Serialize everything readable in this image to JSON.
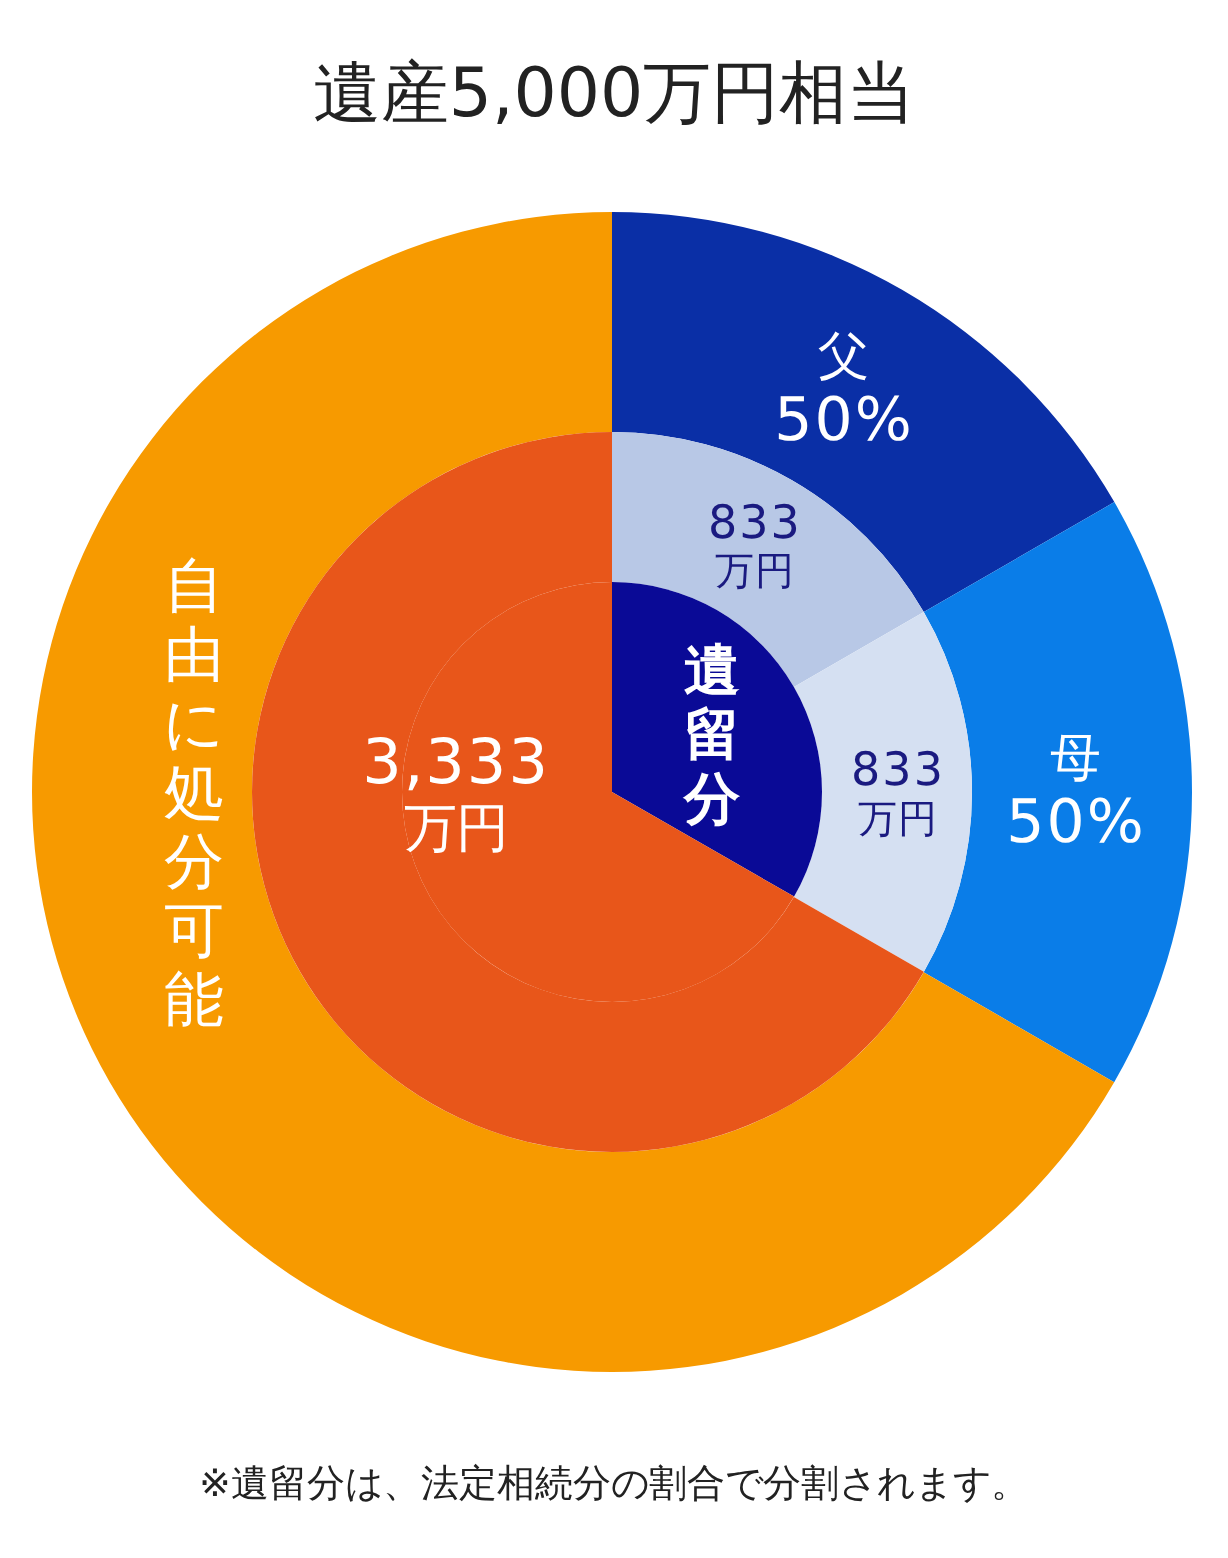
{
  "chart_data": [
    {
      "type": "donut",
      "title": "遺産5,000万円相当",
      "categories": [
        "父",
        "母",
        "自由に処分可能"
      ],
      "values": [
        16.67,
        16.67,
        66.66
      ],
      "colors": [
        "#0a2fa6",
        "#0a7de8",
        "#f79a00"
      ],
      "annotations": [
        {
          "text": "50%",
          "x": "父"
        },
        {
          "text": "50%",
          "x": "母"
        },
        "※遺留分は、法定相続分の割合で分割されます。"
      ]
    },
    {
      "type": "donut",
      "categories": [
        null,
        null,
        null
      ],
      "values": [
        833,
        833,
        3333
      ],
      "colors": [
        "#b8c8e6",
        "#d5e0f2",
        "#e8561a"
      ],
      "value_labels": [
        "833\n万円",
        "833\n万円",
        "3,333\n万円"
      ]
    },
    {
      "type": "pie",
      "categories": [
        "遺留分",
        null
      ],
      "values": [
        33.3,
        66.7
      ],
      "colors": [
        "#0a0a96",
        "#e8561a"
      ]
    }
  ]
}
